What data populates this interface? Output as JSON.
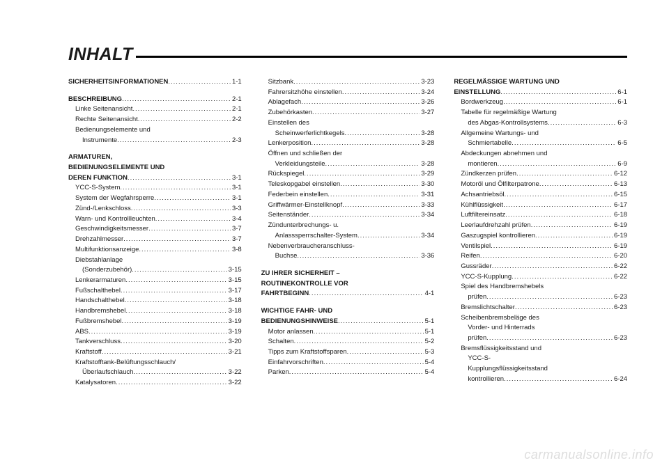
{
  "title": "INHALT",
  "watermark": "carmanualsonline.info",
  "columns": [
    [
      {
        "type": "entry",
        "bold": true,
        "label": "SICHERHEITSINFORMATIONEN",
        "page": "1-1"
      },
      {
        "type": "spacer"
      },
      {
        "type": "entry",
        "bold": true,
        "label": "BESCHREIBUNG",
        "page": "2-1"
      },
      {
        "type": "entry",
        "indent": 1,
        "label": "Linke Seitenansicht",
        "page": "2-1"
      },
      {
        "type": "entry",
        "indent": 1,
        "label": "Rechte Seitenansicht",
        "page": "2-2"
      },
      {
        "type": "text",
        "indent": 1,
        "label": "Bedienungselemente und"
      },
      {
        "type": "entry",
        "indent": 2,
        "label": "Instrumente",
        "page": "2-3"
      },
      {
        "type": "spacer"
      },
      {
        "type": "text",
        "bold": true,
        "label": "ARMATUREN,"
      },
      {
        "type": "text",
        "bold": true,
        "label": "BEDIENUNGSELEMENTE UND"
      },
      {
        "type": "entry",
        "bold": true,
        "label": "DEREN FUNKTION",
        "page": "3-1"
      },
      {
        "type": "entry",
        "indent": 1,
        "label": "YCC-S-System",
        "page": "3-1"
      },
      {
        "type": "entry",
        "indent": 1,
        "label": "System der Wegfahrsperre",
        "page": "3-1"
      },
      {
        "type": "entry",
        "indent": 1,
        "label": "Zünd-/Lenkschloss",
        "page": "3-3"
      },
      {
        "type": "entry",
        "indent": 1,
        "label": "Warn- und Kontrollleuchten",
        "page": "3-4"
      },
      {
        "type": "entry",
        "indent": 1,
        "label": "Geschwindigkeitsmesser",
        "page": "3-7"
      },
      {
        "type": "entry",
        "indent": 1,
        "label": "Drehzahlmesser",
        "page": "3-7"
      },
      {
        "type": "entry",
        "indent": 1,
        "label": "Multifunktionsanzeige",
        "page": "3-8"
      },
      {
        "type": "text",
        "indent": 1,
        "label": "Diebstahlanlage"
      },
      {
        "type": "entry",
        "indent": 2,
        "label": "(Sonderzubehör)",
        "page": "3-15"
      },
      {
        "type": "entry",
        "indent": 1,
        "label": "Lenkerarmaturen",
        "page": "3-15"
      },
      {
        "type": "entry",
        "indent": 1,
        "label": "Fußschalthebel",
        "page": "3-17"
      },
      {
        "type": "entry",
        "indent": 1,
        "label": "Handschalthebel",
        "page": "3-18"
      },
      {
        "type": "entry",
        "indent": 1,
        "label": "Handbremshebel",
        "page": "3-18"
      },
      {
        "type": "entry",
        "indent": 1,
        "label": "Fußbremshebel",
        "page": "3-19"
      },
      {
        "type": "entry",
        "indent": 1,
        "label": "ABS",
        "page": "3-19"
      },
      {
        "type": "entry",
        "indent": 1,
        "label": "Tankverschluss",
        "page": "3-20"
      },
      {
        "type": "entry",
        "indent": 1,
        "label": "Kraftstoff",
        "page": "3-21"
      },
      {
        "type": "text",
        "indent": 1,
        "label": "Kraftstofftank-Belüftungsschlauch/"
      },
      {
        "type": "entry",
        "indent": 2,
        "label": "Überlaufschlauch",
        "page": "3-22"
      },
      {
        "type": "entry",
        "indent": 1,
        "label": "Katalysatoren",
        "page": "3-22"
      }
    ],
    [
      {
        "type": "entry",
        "indent": 1,
        "label": "Sitzbank",
        "page": "3-23"
      },
      {
        "type": "entry",
        "indent": 1,
        "label": "Fahrersitzhöhe einstellen",
        "page": "3-24"
      },
      {
        "type": "entry",
        "indent": 1,
        "label": "Ablagefach",
        "page": "3-26"
      },
      {
        "type": "entry",
        "indent": 1,
        "label": "Zubehörkasten",
        "page": "3-27"
      },
      {
        "type": "text",
        "indent": 1,
        "label": "Einstellen des"
      },
      {
        "type": "entry",
        "indent": 2,
        "label": "Scheinwerferlichtkegels",
        "page": "3-28"
      },
      {
        "type": "entry",
        "indent": 1,
        "label": "Lenkerposition",
        "page": "3-28"
      },
      {
        "type": "text",
        "indent": 1,
        "label": "Öffnen und schließen der"
      },
      {
        "type": "entry",
        "indent": 2,
        "label": "Verkleidungsteile",
        "page": "3-28"
      },
      {
        "type": "entry",
        "indent": 1,
        "label": "Rückspiegel",
        "page": "3-29"
      },
      {
        "type": "entry",
        "indent": 1,
        "label": "Teleskopgabel einstellen",
        "page": "3-30"
      },
      {
        "type": "entry",
        "indent": 1,
        "label": "Federbein einstellen",
        "page": "3-31"
      },
      {
        "type": "entry",
        "indent": 1,
        "label": "Griffwärmer-Einstellknopf",
        "page": "3-33"
      },
      {
        "type": "entry",
        "indent": 1,
        "label": "Seitenständer",
        "page": "3-34"
      },
      {
        "type": "text",
        "indent": 1,
        "label": "Zündunterbrechungs- u."
      },
      {
        "type": "entry",
        "indent": 2,
        "label": "Anlasssperrschalter-System",
        "page": "3-34"
      },
      {
        "type": "text",
        "indent": 1,
        "label": "Nebenverbraucheranschluss-"
      },
      {
        "type": "entry",
        "indent": 2,
        "label": "Buchse",
        "page": "3-36"
      },
      {
        "type": "spacer"
      },
      {
        "type": "text",
        "bold": true,
        "label": "ZU IHRER SICHERHEIT –"
      },
      {
        "type": "text",
        "bold": true,
        "label": "ROUTINEKONTROLLE VOR"
      },
      {
        "type": "entry",
        "bold": true,
        "label": "FAHRTBEGINN",
        "page": "4-1"
      },
      {
        "type": "spacer"
      },
      {
        "type": "text",
        "bold": true,
        "label": "WICHTIGE FAHR- UND"
      },
      {
        "type": "entry",
        "bold": true,
        "label": "BEDIENUNGSHINWEISE",
        "page": "5-1"
      },
      {
        "type": "entry",
        "indent": 1,
        "label": "Motor anlassen",
        "page": "5-1"
      },
      {
        "type": "entry",
        "indent": 1,
        "label": "Schalten",
        "page": "5-2"
      },
      {
        "type": "entry",
        "indent": 1,
        "label": "Tipps zum Kraftstoffsparen",
        "page": "5-3"
      },
      {
        "type": "entry",
        "indent": 1,
        "label": "Einfahrvorschriften",
        "page": "5-4"
      },
      {
        "type": "entry",
        "indent": 1,
        "label": "Parken",
        "page": "5-4"
      }
    ],
    [
      {
        "type": "text",
        "bold": true,
        "label": "REGELMÄSSIGE WARTUNG UND"
      },
      {
        "type": "entry",
        "bold": true,
        "label": "EINSTELLUNG",
        "page": "6-1"
      },
      {
        "type": "entry",
        "indent": 1,
        "label": "Bordwerkzeug",
        "page": "6-1"
      },
      {
        "type": "text",
        "indent": 1,
        "label": "Tabelle für regelmäßige Wartung"
      },
      {
        "type": "entry",
        "indent": 2,
        "label": "des Abgas-Kontrollsystems",
        "page": "6-3"
      },
      {
        "type": "text",
        "indent": 1,
        "label": "Allgemeine Wartungs- und"
      },
      {
        "type": "entry",
        "indent": 2,
        "label": "Schmiertabelle",
        "page": "6-5"
      },
      {
        "type": "text",
        "indent": 1,
        "label": "Abdeckungen abnehmen und"
      },
      {
        "type": "entry",
        "indent": 2,
        "label": "montieren",
        "page": "6-9"
      },
      {
        "type": "entry",
        "indent": 1,
        "label": "Zündkerzen prüfen",
        "page": "6-12"
      },
      {
        "type": "entry",
        "indent": 1,
        "label": "Motoröl und Ölfilterpatrone",
        "page": "6-13"
      },
      {
        "type": "entry",
        "indent": 1,
        "label": "Achsantriebsöl",
        "page": "6-15"
      },
      {
        "type": "entry",
        "indent": 1,
        "label": "Kühlflüssigkeit",
        "page": "6-17"
      },
      {
        "type": "entry",
        "indent": 1,
        "label": "Luftfiltereinsatz",
        "page": "6-18"
      },
      {
        "type": "entry",
        "indent": 1,
        "label": "Leerlaufdrehzahl prüfen",
        "page": "6-19"
      },
      {
        "type": "entry",
        "indent": 1,
        "label": "Gaszugspiel kontrollieren",
        "page": "6-19"
      },
      {
        "type": "entry",
        "indent": 1,
        "label": "Ventilspiel",
        "page": "6-19"
      },
      {
        "type": "entry",
        "indent": 1,
        "label": "Reifen",
        "page": "6-20"
      },
      {
        "type": "entry",
        "indent": 1,
        "label": "Gussräder",
        "page": "6-22"
      },
      {
        "type": "entry",
        "indent": 1,
        "label": "YCC-S-Kupplung",
        "page": "6-22"
      },
      {
        "type": "text",
        "indent": 1,
        "label": "Spiel des Handbremshebels"
      },
      {
        "type": "entry",
        "indent": 2,
        "label": "prüfen",
        "page": "6-23"
      },
      {
        "type": "entry",
        "indent": 1,
        "label": "Bremslichtschalter",
        "page": "6-23"
      },
      {
        "type": "text",
        "indent": 1,
        "label": "Scheibenbremsbeläge des"
      },
      {
        "type": "text",
        "indent": 2,
        "label": "Vorder- und Hinterrads"
      },
      {
        "type": "entry",
        "indent": 2,
        "label": "prüfen",
        "page": "6-23"
      },
      {
        "type": "text",
        "indent": 1,
        "label": "Bremsflüssigkeitsstand und"
      },
      {
        "type": "text",
        "indent": 2,
        "label": "YCC-S-"
      },
      {
        "type": "text",
        "indent": 2,
        "label": "Kupplungsflüssigkeitsstand"
      },
      {
        "type": "entry",
        "indent": 2,
        "label": "kontrollieren",
        "page": "6-24"
      }
    ]
  ]
}
